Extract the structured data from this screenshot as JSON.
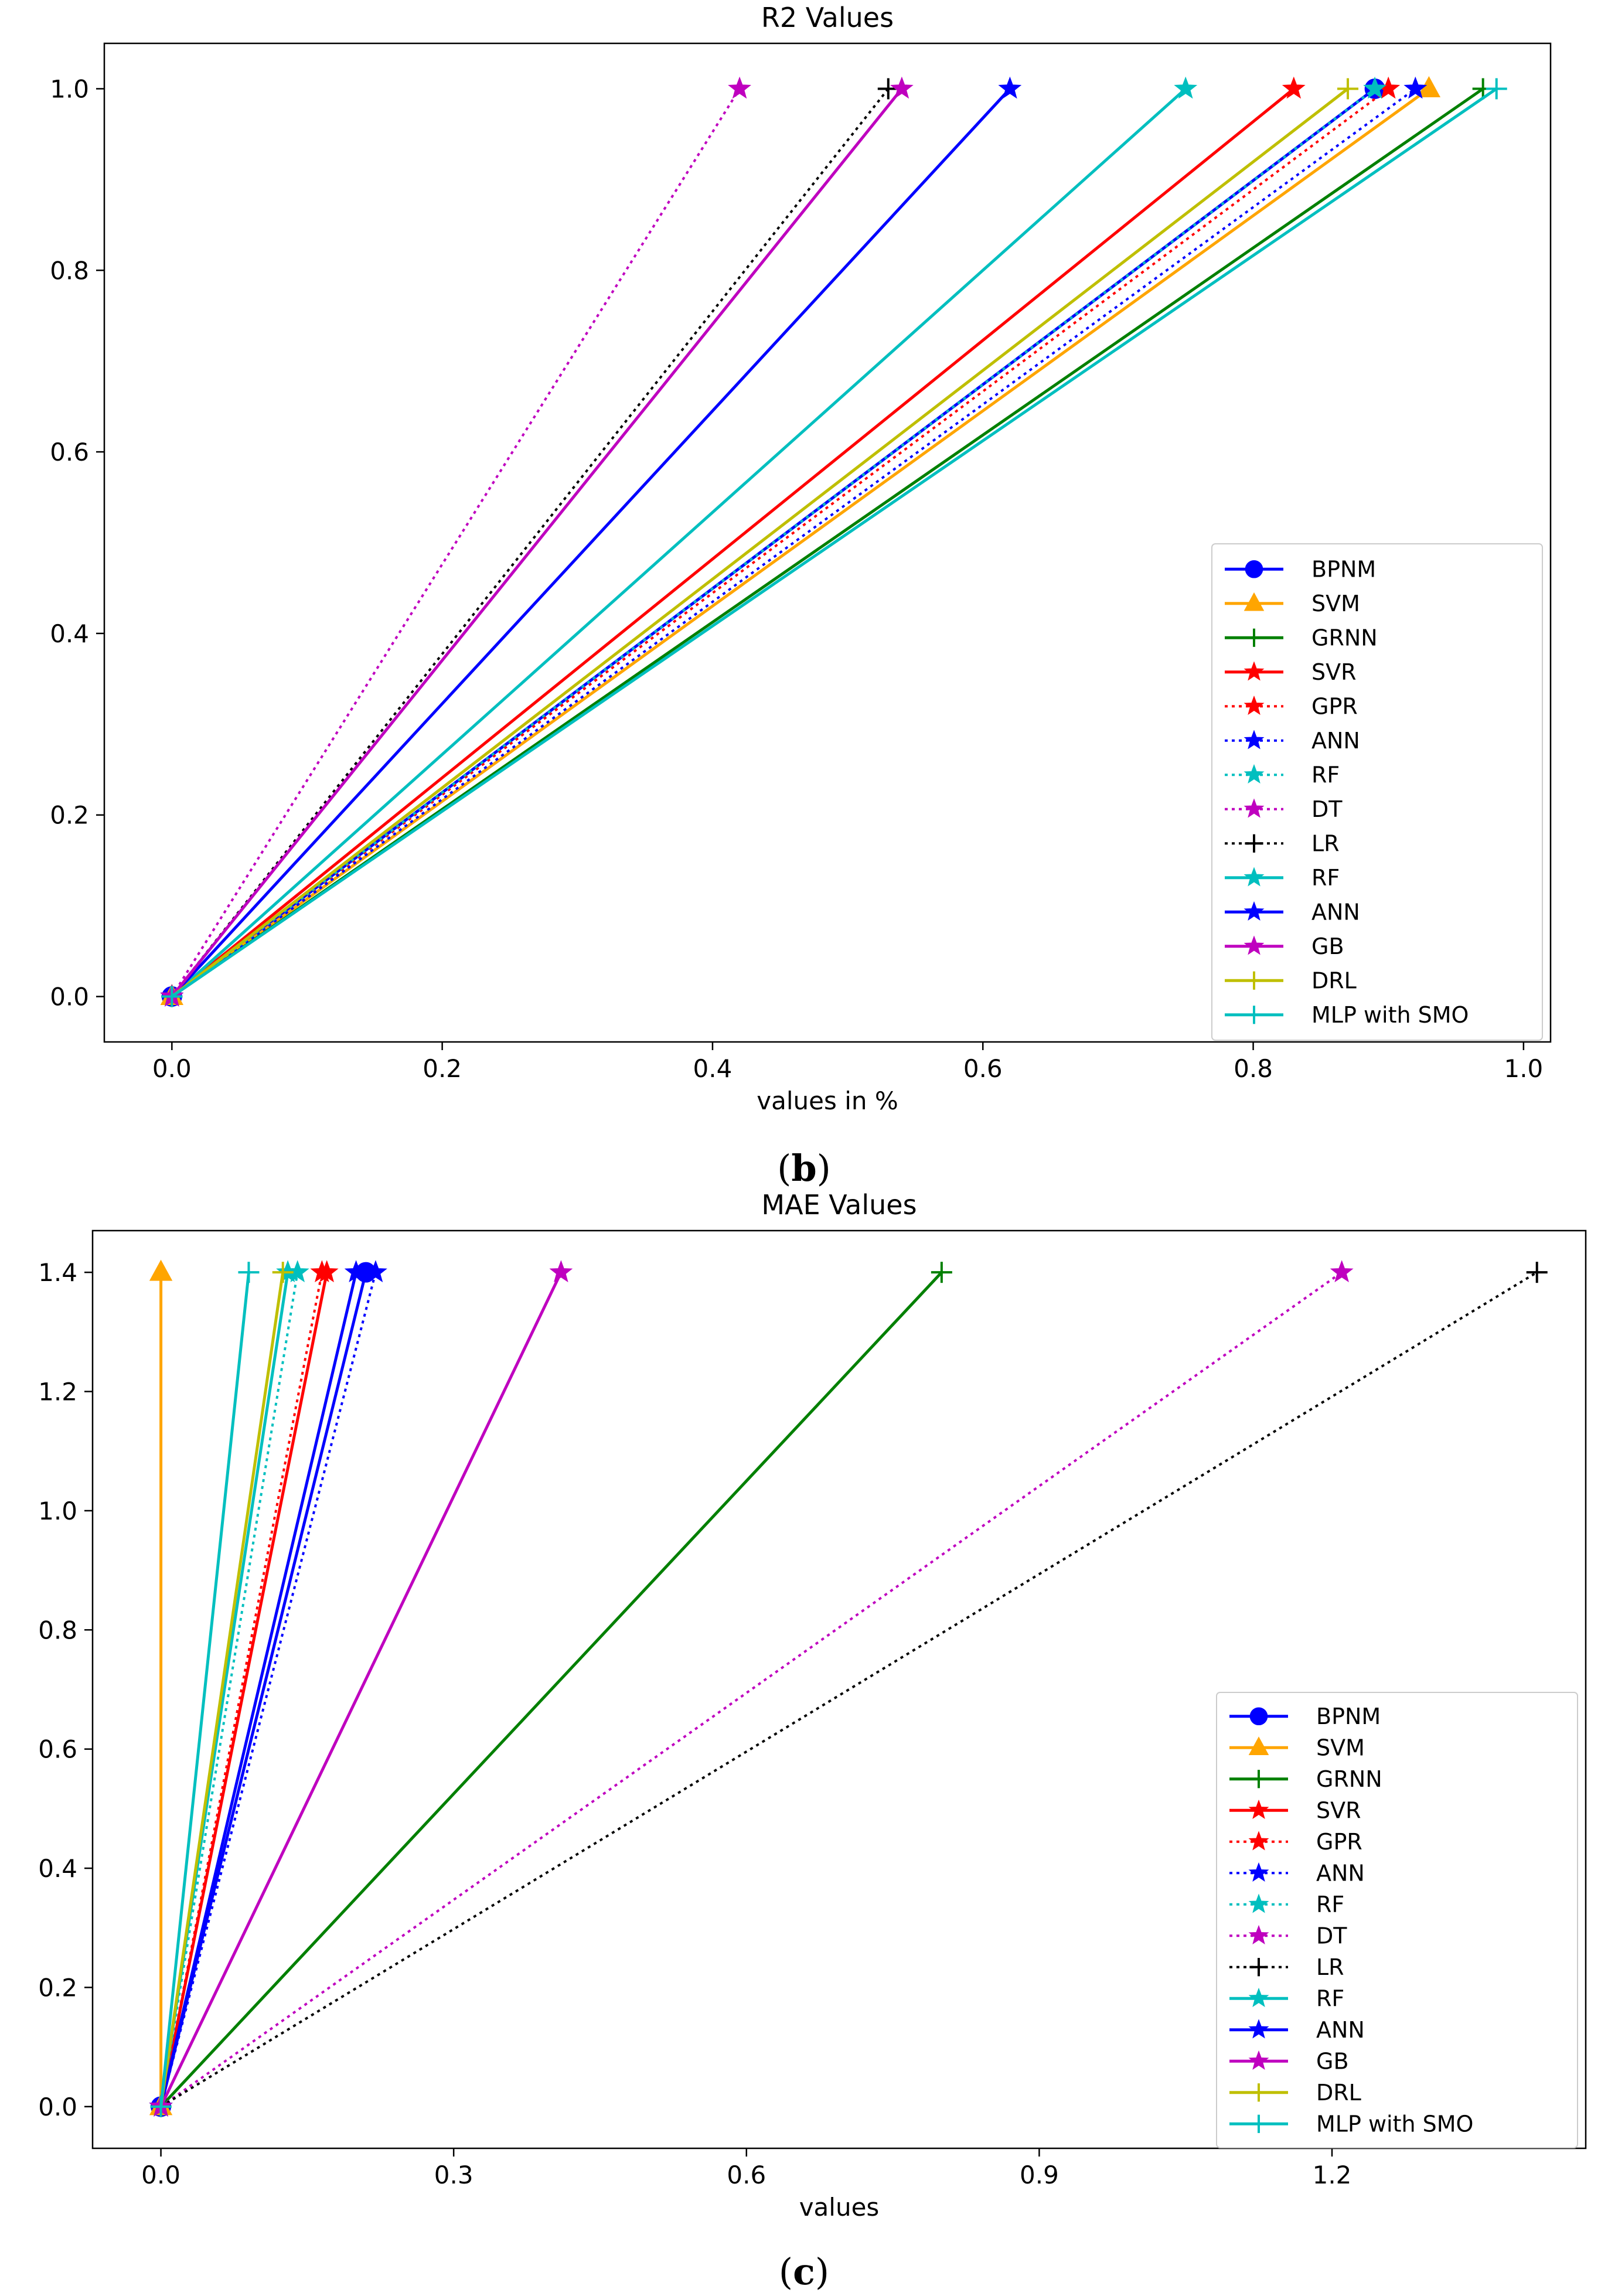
{
  "chart_data": [
    {
      "type": "line",
      "title": "R2 Values",
      "xlabel": "values in %",
      "ylabel": "",
      "xlim": [
        -0.05,
        1.02
      ],
      "ylim": [
        -0.05,
        1.05
      ],
      "xticks": [
        0.0,
        0.2,
        0.4,
        0.6,
        0.8,
        1.0
      ],
      "xtick_labels": [
        "0.0",
        "0.2",
        "0.4",
        "0.6",
        "0.8",
        "1.0"
      ],
      "yticks": [
        0.0,
        0.2,
        0.4,
        0.6,
        0.8,
        1.0
      ],
      "ytick_labels": [
        "0.0",
        "0.2",
        "0.4",
        "0.6",
        "0.8",
        "1.0"
      ],
      "legend_position": "lower-right",
      "caption_open": "(",
      "caption_letter": "b",
      "caption_close": ")",
      "series": [
        {
          "name": "BPNM",
          "color": "#0000ff",
          "dash": "solid",
          "marker": "circle",
          "x": [
            0,
            0.89
          ],
          "y": [
            0,
            1.0
          ]
        },
        {
          "name": "SVM",
          "color": "#ffa500",
          "dash": "solid",
          "marker": "triangle",
          "x": [
            0,
            0.93
          ],
          "y": [
            0,
            1.0
          ]
        },
        {
          "name": "GRNN",
          "color": "#008000",
          "dash": "solid",
          "marker": "plus",
          "x": [
            0,
            0.97
          ],
          "y": [
            0,
            1.0
          ]
        },
        {
          "name": "SVR",
          "color": "#ff0000",
          "dash": "solid",
          "marker": "star",
          "x": [
            0,
            0.83
          ],
          "y": [
            0,
            1.0
          ]
        },
        {
          "name": "GPR",
          "color": "#ff0000",
          "dash": "dotted",
          "marker": "star",
          "x": [
            0,
            0.9
          ],
          "y": [
            0,
            1.0
          ]
        },
        {
          "name": "ANN",
          "color": "#0000ff",
          "dash": "dotted",
          "marker": "star",
          "x": [
            0,
            0.92
          ],
          "y": [
            0,
            1.0
          ]
        },
        {
          "name": "RF",
          "color": "#00bfbf",
          "dash": "dotted",
          "marker": "star",
          "x": [
            0,
            0.89
          ],
          "y": [
            0,
            1.0
          ]
        },
        {
          "name": "DT",
          "color": "#bf00bf",
          "dash": "dotted",
          "marker": "star",
          "x": [
            0,
            0.42
          ],
          "y": [
            0,
            1.0
          ]
        },
        {
          "name": "LR",
          "color": "#000000",
          "dash": "dotted",
          "marker": "plus",
          "x": [
            0,
            0.53
          ],
          "y": [
            0,
            1.0
          ]
        },
        {
          "name": "RF",
          "color": "#00bfbf",
          "dash": "solid",
          "marker": "star",
          "x": [
            0,
            0.75
          ],
          "y": [
            0,
            1.0
          ]
        },
        {
          "name": "ANN",
          "color": "#0000ff",
          "dash": "solid",
          "marker": "star",
          "x": [
            0,
            0.62
          ],
          "y": [
            0,
            1.0
          ]
        },
        {
          "name": "GB",
          "color": "#bf00bf",
          "dash": "solid",
          "marker": "star",
          "x": [
            0,
            0.54
          ],
          "y": [
            0,
            1.0
          ]
        },
        {
          "name": "DRL",
          "color": "#bfbf00",
          "dash": "solid",
          "marker": "plus",
          "x": [
            0,
            0.87
          ],
          "y": [
            0,
            1.0
          ]
        },
        {
          "name": "MLP with SMO",
          "color": "#00bfbf",
          "dash": "solid",
          "marker": "plus",
          "x": [
            0,
            0.98
          ],
          "y": [
            0,
            1.0
          ]
        }
      ]
    },
    {
      "type": "line",
      "title": "MAE Values",
      "xlabel": "values",
      "ylabel": "",
      "xlim": [
        -0.07,
        1.46
      ],
      "ylim": [
        -0.07,
        1.47
      ],
      "xticks": [
        0.0,
        0.3,
        0.6,
        0.9,
        1.2
      ],
      "xtick_labels": [
        "0.0",
        "0.3",
        "0.6",
        "0.9",
        "1.2"
      ],
      "yticks": [
        0.0,
        0.2,
        0.4,
        0.6,
        0.8,
        1.0,
        1.2,
        1.4
      ],
      "ytick_labels": [
        "0.0",
        "0.2",
        "0.4",
        "0.6",
        "0.8",
        "1.0",
        "1.2",
        "1.4"
      ],
      "legend_position": "lower-right",
      "caption_open": "(",
      "caption_letter": "c",
      "caption_close": ")",
      "series": [
        {
          "name": "BPNM",
          "color": "#0000ff",
          "dash": "solid",
          "marker": "circle",
          "x": [
            0,
            0.21
          ],
          "y": [
            0,
            1.4
          ]
        },
        {
          "name": "SVM",
          "color": "#ffa500",
          "dash": "solid",
          "marker": "triangle",
          "x": [
            0,
            0.0
          ],
          "y": [
            0,
            1.4
          ]
        },
        {
          "name": "GRNN",
          "color": "#008000",
          "dash": "solid",
          "marker": "plus",
          "x": [
            0,
            0.8
          ],
          "y": [
            0,
            1.4
          ]
        },
        {
          "name": "SVR",
          "color": "#ff0000",
          "dash": "solid",
          "marker": "star",
          "x": [
            0,
            0.17
          ],
          "y": [
            0,
            1.4
          ]
        },
        {
          "name": "GPR",
          "color": "#ff0000",
          "dash": "dotted",
          "marker": "star",
          "x": [
            0,
            0.165
          ],
          "y": [
            0,
            1.4
          ]
        },
        {
          "name": "ANN",
          "color": "#0000ff",
          "dash": "dotted",
          "marker": "star",
          "x": [
            0,
            0.22
          ],
          "y": [
            0,
            1.4
          ]
        },
        {
          "name": "RF",
          "color": "#00bfbf",
          "dash": "dotted",
          "marker": "star",
          "x": [
            0,
            0.14
          ],
          "y": [
            0,
            1.4
          ]
        },
        {
          "name": "DT",
          "color": "#bf00bf",
          "dash": "dotted",
          "marker": "star",
          "x": [
            0,
            1.21
          ],
          "y": [
            0,
            1.4
          ]
        },
        {
          "name": "LR",
          "color": "#000000",
          "dash": "dotted",
          "marker": "plus",
          "x": [
            0,
            1.41
          ],
          "y": [
            0,
            1.4
          ]
        },
        {
          "name": "RF",
          "color": "#00bfbf",
          "dash": "solid",
          "marker": "star",
          "x": [
            0,
            0.13
          ],
          "y": [
            0,
            1.4
          ]
        },
        {
          "name": "ANN",
          "color": "#0000ff",
          "dash": "solid",
          "marker": "star",
          "x": [
            0,
            0.2
          ],
          "y": [
            0,
            1.4
          ]
        },
        {
          "name": "GB",
          "color": "#bf00bf",
          "dash": "solid",
          "marker": "star",
          "x": [
            0,
            0.41
          ],
          "y": [
            0,
            1.4
          ]
        },
        {
          "name": "DRL",
          "color": "#bfbf00",
          "dash": "solid",
          "marker": "plus",
          "x": [
            0,
            0.125
          ],
          "y": [
            0,
            1.4
          ]
        },
        {
          "name": "MLP with SMO",
          "color": "#00bfbf",
          "dash": "solid",
          "marker": "plus",
          "x": [
            0,
            0.09
          ],
          "y": [
            0,
            1.4
          ]
        }
      ]
    }
  ]
}
